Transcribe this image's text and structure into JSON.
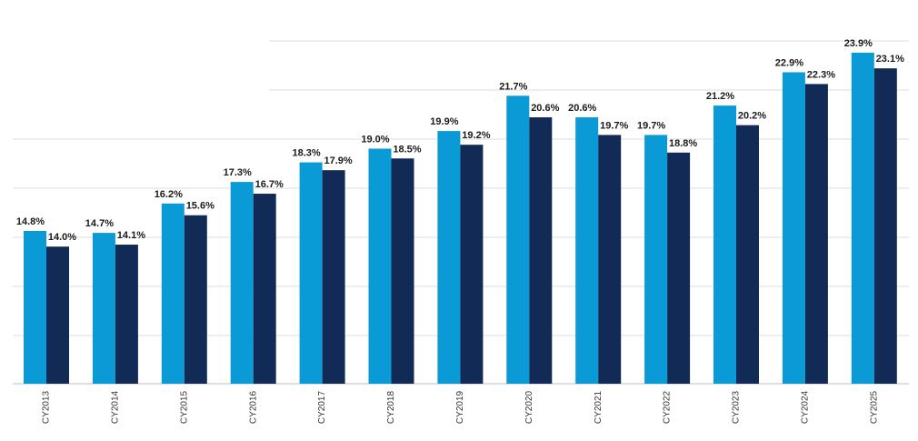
{
  "chart_data": {
    "type": "bar",
    "title": "",
    "xlabel": "",
    "ylabel": "",
    "ylim": [
      7,
      24.5
    ],
    "grid": true,
    "categories": [
      "CY2013",
      "CY2014",
      "CY2015",
      "CY2016",
      "CY2017",
      "CY2018",
      "CY2019",
      "CY2020",
      "CY2021",
      "CY2022",
      "CY2023",
      "CY2024",
      "CY2025"
    ],
    "series": [
      {
        "name": "Series 1",
        "color": "#0a9ad6",
        "values": [
          14.8,
          14.7,
          16.2,
          17.3,
          18.3,
          19.0,
          19.9,
          21.7,
          20.6,
          19.7,
          21.2,
          22.9,
          23.9
        ],
        "labels": [
          "14.8%",
          "14.7%",
          "16.2%",
          "17.3%",
          "18.3%",
          "19.0%",
          "19.9%",
          "21.7%",
          "20.6%",
          "19.7%",
          "21.2%",
          "22.9%",
          "23.9%"
        ]
      },
      {
        "name": "Series 2",
        "color": "#112a56",
        "values": [
          14.0,
          14.1,
          15.6,
          16.7,
          17.9,
          18.5,
          19.2,
          20.6,
          19.7,
          18.8,
          20.2,
          22.3,
          23.1
        ],
        "labels": [
          "14.0%",
          "14.1%",
          "15.6%",
          "16.7%",
          "17.9%",
          "18.5%",
          "19.2%",
          "20.6%",
          "19.7%",
          "18.8%",
          "20.2%",
          "22.3%",
          "23.1%"
        ]
      }
    ]
  }
}
